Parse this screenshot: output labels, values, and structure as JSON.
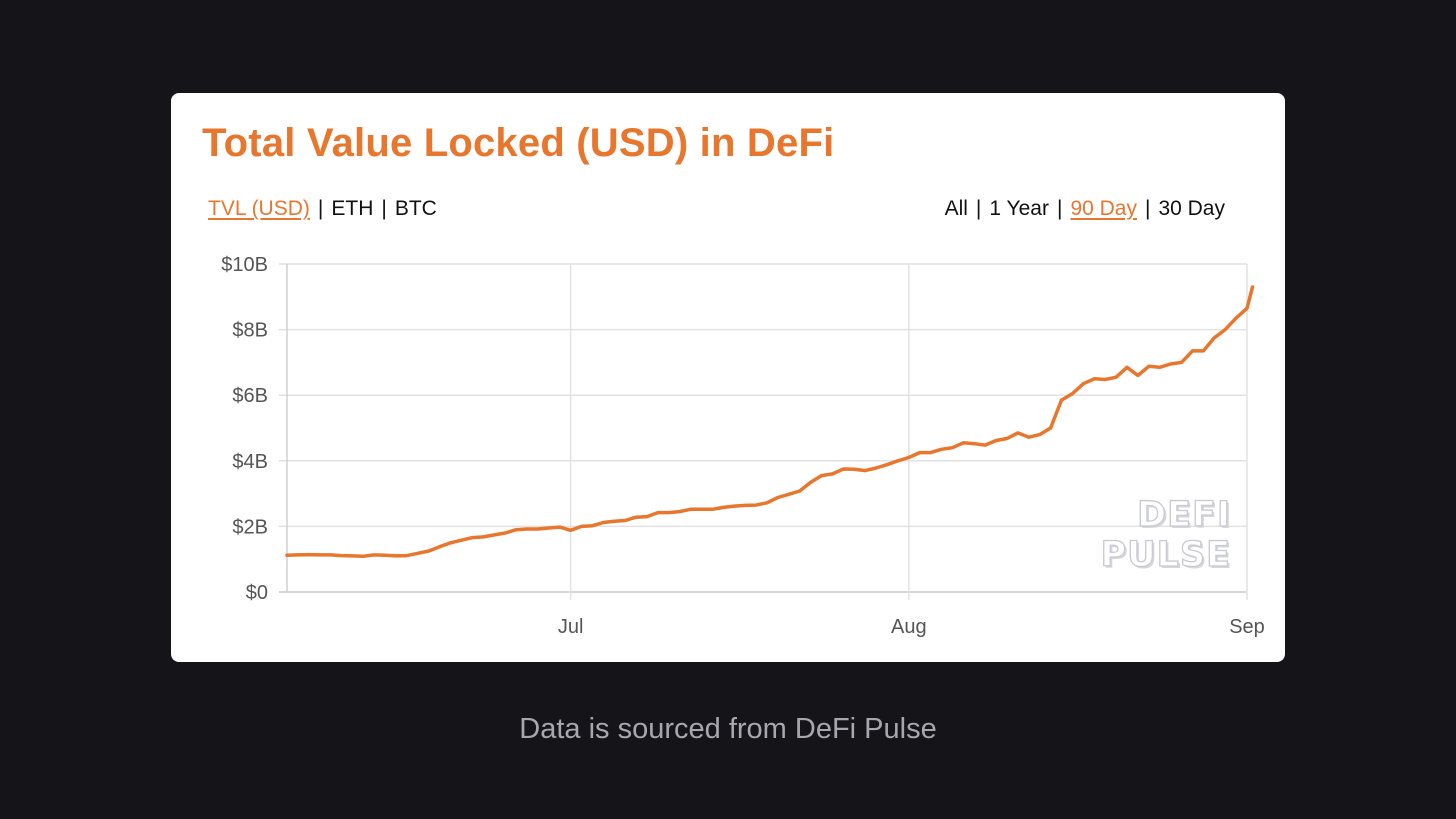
{
  "title": "Total Value Locked (USD) in DeFi",
  "metric_tabs": [
    {
      "label": "TVL (USD)",
      "active": true
    },
    {
      "label": "ETH",
      "active": false
    },
    {
      "label": "BTC",
      "active": false
    }
  ],
  "range_tabs": [
    {
      "label": "All",
      "active": false
    },
    {
      "label": "1 Year",
      "active": false
    },
    {
      "label": "90 Day",
      "active": true
    },
    {
      "label": "30 Day",
      "active": false
    }
  ],
  "separator": "|",
  "watermark": {
    "line1": "DEFI",
    "line2": "PULSE"
  },
  "caption": "Data is sourced from DeFi Pulse",
  "colors": {
    "accent": "#e8762d",
    "background": "#151519",
    "card": "#ffffff",
    "grid": "#e2e2e2"
  },
  "chart_data": {
    "type": "line",
    "x_ticks": [
      {
        "label": "Jul",
        "day": 26
      },
      {
        "label": "Aug",
        "day": 57
      },
      {
        "label": "Sep",
        "day": 88
      }
    ],
    "y_ticks": [
      {
        "label": "$0",
        "value": 0
      },
      {
        "label": "$2B",
        "value": 2
      },
      {
        "label": "$4B",
        "value": 4
      },
      {
        "label": "$6B",
        "value": 6
      },
      {
        "label": "$8B",
        "value": 8
      },
      {
        "label": "$10B",
        "value": 10
      }
    ],
    "ylim": [
      0,
      10
    ],
    "xlim": [
      0,
      88
    ],
    "grid": true,
    "series": [
      {
        "color": "#e8762d",
        "points": [
          [
            0,
            1.12
          ],
          [
            1,
            1.13
          ],
          [
            2,
            1.14
          ],
          [
            3,
            1.13
          ],
          [
            4,
            1.13
          ],
          [
            5,
            1.11
          ],
          [
            6,
            1.1
          ],
          [
            7,
            1.09
          ],
          [
            8,
            1.13
          ],
          [
            9,
            1.12
          ],
          [
            10,
            1.1
          ],
          [
            11,
            1.11
          ],
          [
            12,
            1.18
          ],
          [
            13,
            1.25
          ],
          [
            14,
            1.38
          ],
          [
            15,
            1.5
          ],
          [
            16,
            1.58
          ],
          [
            17,
            1.66
          ],
          [
            18,
            1.68
          ],
          [
            19,
            1.74
          ],
          [
            20,
            1.8
          ],
          [
            21,
            1.9
          ],
          [
            22,
            1.92
          ],
          [
            23,
            1.92
          ],
          [
            24,
            1.95
          ],
          [
            25,
            1.98
          ],
          [
            26,
            1.88
          ],
          [
            27,
            2.0
          ],
          [
            28,
            2.02
          ],
          [
            29,
            2.12
          ],
          [
            30,
            2.16
          ],
          [
            31,
            2.18
          ],
          [
            32,
            2.28
          ],
          [
            33,
            2.3
          ],
          [
            34,
            2.42
          ],
          [
            35,
            2.42
          ],
          [
            36,
            2.45
          ],
          [
            37,
            2.52
          ],
          [
            38,
            2.52
          ],
          [
            39,
            2.52
          ],
          [
            40,
            2.58
          ],
          [
            41,
            2.62
          ],
          [
            42,
            2.64
          ],
          [
            43,
            2.65
          ],
          [
            44,
            2.72
          ],
          [
            45,
            2.88
          ],
          [
            46,
            2.98
          ],
          [
            47,
            3.08
          ],
          [
            48,
            3.34
          ],
          [
            49,
            3.55
          ],
          [
            50,
            3.6
          ],
          [
            51,
            3.75
          ],
          [
            52,
            3.74
          ],
          [
            53,
            3.7
          ],
          [
            54,
            3.78
          ],
          [
            55,
            3.88
          ],
          [
            56,
            4.0
          ],
          [
            57,
            4.1
          ],
          [
            58,
            4.25
          ],
          [
            59,
            4.25
          ],
          [
            60,
            4.35
          ],
          [
            61,
            4.4
          ],
          [
            62,
            4.55
          ],
          [
            63,
            4.52
          ],
          [
            64,
            4.48
          ],
          [
            65,
            4.62
          ],
          [
            66,
            4.68
          ],
          [
            67,
            4.85
          ],
          [
            68,
            4.72
          ],
          [
            69,
            4.8
          ],
          [
            70,
            5.0
          ],
          [
            71,
            5.85
          ],
          [
            72,
            6.05
          ],
          [
            73,
            6.35
          ],
          [
            74,
            6.5
          ],
          [
            75,
            6.48
          ],
          [
            76,
            6.55
          ],
          [
            77,
            6.85
          ],
          [
            78,
            6.6
          ],
          [
            79,
            6.88
          ],
          [
            80,
            6.85
          ],
          [
            81,
            6.95
          ],
          [
            82,
            7.0
          ],
          [
            83,
            7.35
          ],
          [
            84,
            7.35
          ],
          [
            85,
            7.75
          ],
          [
            86,
            8.0
          ],
          [
            87,
            8.35
          ],
          [
            88,
            8.65
          ],
          [
            88.5,
            9.3
          ]
        ]
      }
    ]
  }
}
